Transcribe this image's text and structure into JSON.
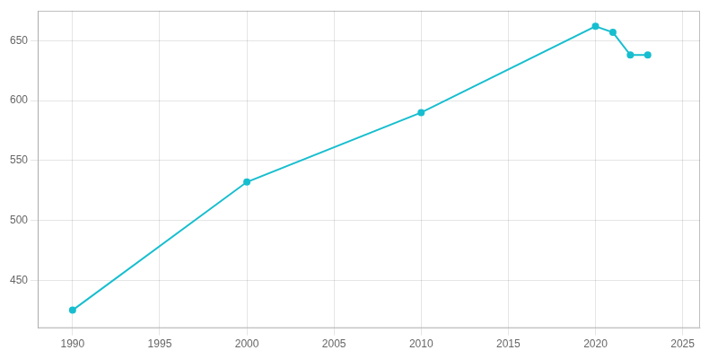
{
  "chart_data": {
    "type": "line",
    "x": [
      1990,
      2000,
      2010,
      2020,
      2021,
      2022,
      2023
    ],
    "values": [
      425,
      532,
      590,
      662,
      657,
      638,
      638
    ],
    "color": "#17BECF",
    "marker": "circle",
    "xlim": [
      1988,
      2026
    ],
    "ylim": [
      410,
      675
    ],
    "xticks": [
      1990,
      1995,
      2000,
      2005,
      2010,
      2015,
      2020,
      2025
    ],
    "yticks": [
      450,
      500,
      550,
      600,
      650
    ],
    "grid": true
  }
}
